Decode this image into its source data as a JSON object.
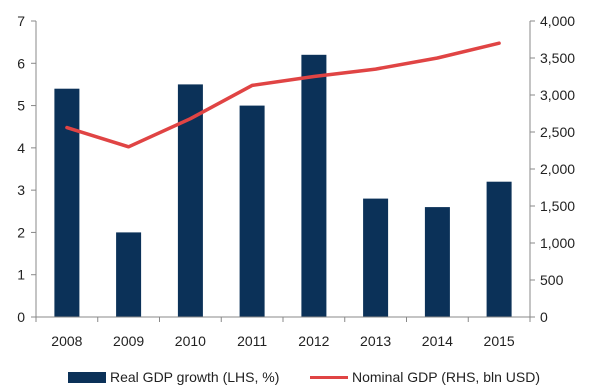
{
  "chart_data": {
    "type": "bar",
    "categories": [
      "2008",
      "2009",
      "2010",
      "2011",
      "2012",
      "2013",
      "2014",
      "2015"
    ],
    "series": [
      {
        "name": "Real GDP growth (LHS, %)",
        "kind": "bar",
        "axis": "left",
        "color": "#0b3158",
        "values": [
          5.4,
          2.0,
          5.5,
          5.0,
          6.2,
          2.8,
          2.6,
          3.2
        ]
      },
      {
        "name": "Nominal GDP (RHS, bln USD)",
        "kind": "line",
        "axis": "right",
        "color": "#e04444",
        "values": [
          2560,
          2300,
          2680,
          3130,
          3250,
          3350,
          3500,
          3700
        ]
      }
    ],
    "y_left": {
      "min": 0,
      "max": 7,
      "ticks": [
        "0",
        "1",
        "2",
        "3",
        "4",
        "5",
        "6",
        "7"
      ]
    },
    "y_right": {
      "min": 0,
      "max": 4000,
      "ticks": [
        "0",
        "500",
        "1,000",
        "1,500",
        "2,000",
        "2,500",
        "3,000",
        "3,500",
        "4,000"
      ]
    },
    "grid": false,
    "legend_position": "bottom"
  }
}
